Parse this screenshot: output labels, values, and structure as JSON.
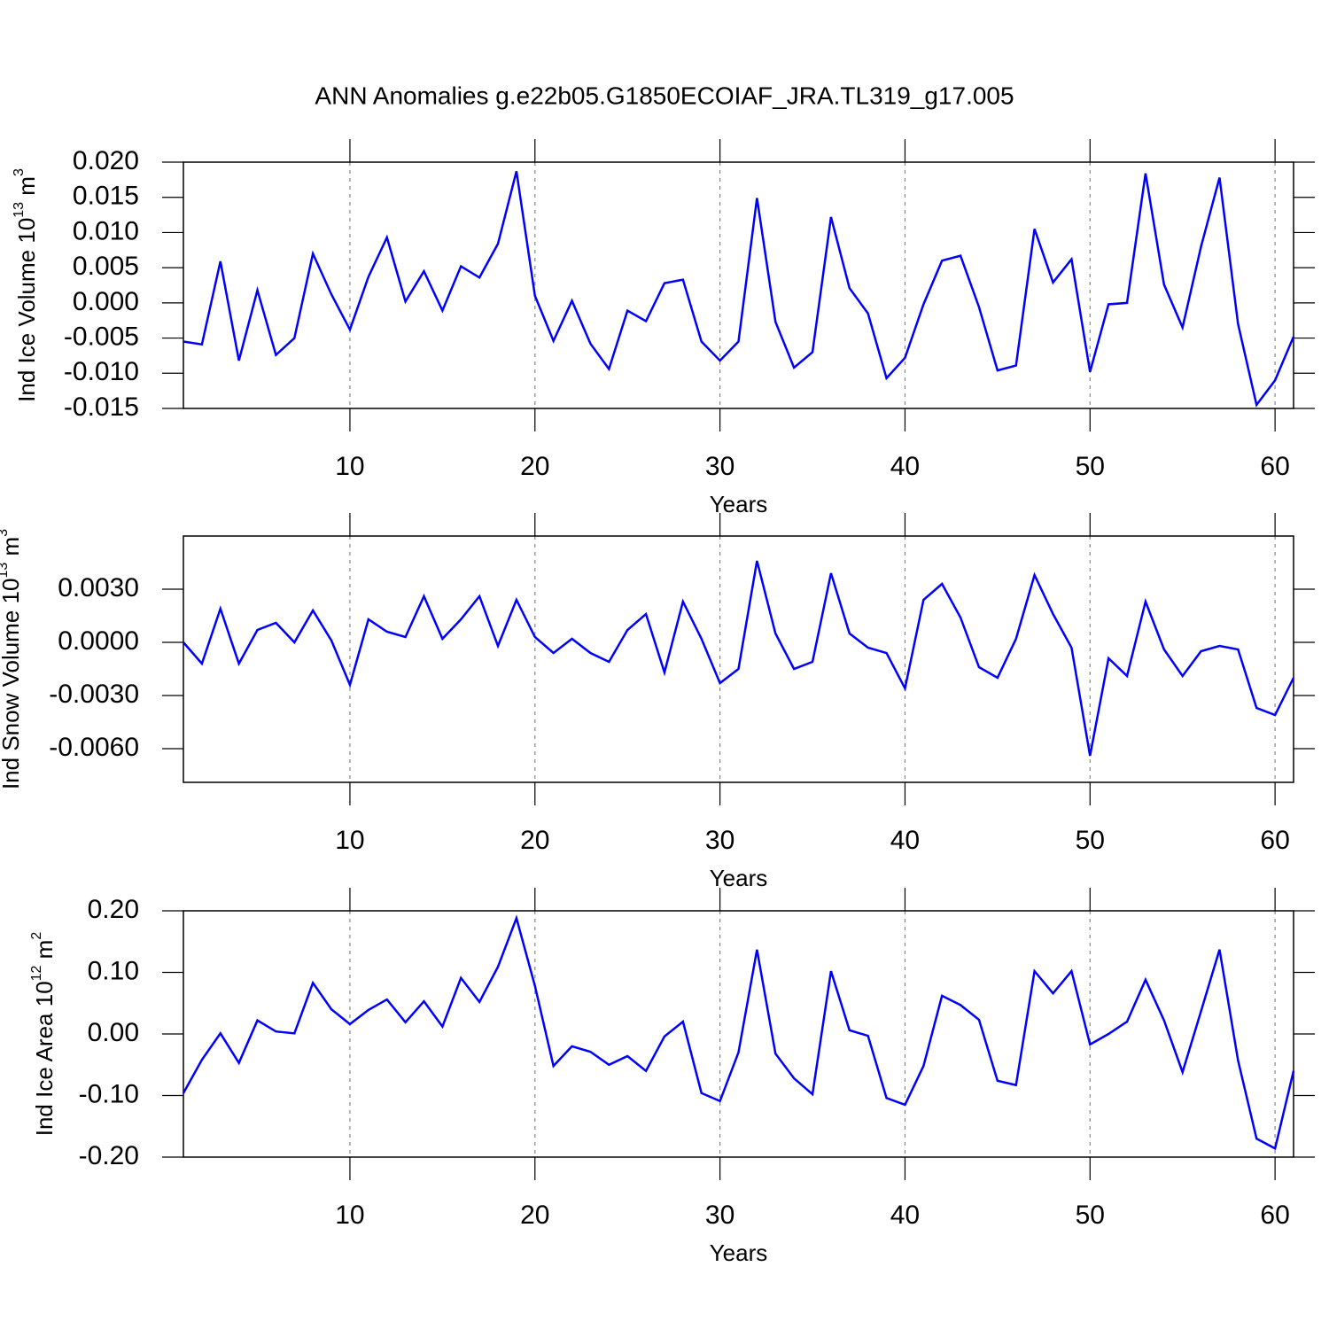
{
  "title": "ANN Anomalies g.e22b05.G1850ECOIAF_JRA.TL319_g17.005",
  "chart_data": [
    {
      "type": "line",
      "ylabel": [
        "Ind Ice Volume 10",
        "13",
        " m",
        "3"
      ],
      "xlabel": "Years",
      "color": "#0000ff",
      "grid": true,
      "x": [
        1,
        2,
        3,
        4,
        5,
        6,
        7,
        8,
        9,
        10,
        11,
        12,
        13,
        14,
        15,
        16,
        17,
        18,
        19,
        20,
        21,
        22,
        23,
        24,
        25,
        26,
        27,
        28,
        29,
        30,
        31,
        32,
        33,
        34,
        35,
        36,
        37,
        38,
        39,
        40,
        41,
        42,
        43,
        44,
        45,
        46,
        47,
        48,
        49,
        50,
        51,
        52,
        53,
        54,
        55,
        56,
        57,
        58,
        59,
        60,
        61
      ],
      "values": [
        -0.0055,
        -0.0059,
        0.0059,
        -0.0082,
        0.0018,
        -0.0074,
        -0.005,
        0.007,
        0.0012,
        -0.0038,
        0.0037,
        0.0093,
        0.0002,
        0.0045,
        -0.0011,
        0.0052,
        0.0036,
        0.0084,
        0.0187,
        0.001,
        -0.0054,
        0.0003,
        -0.0058,
        -0.0094,
        -0.0011,
        -0.0026,
        0.0028,
        0.0033,
        -0.0055,
        -0.0082,
        -0.0055,
        0.0149,
        -0.0027,
        -0.0092,
        -0.007,
        0.0122,
        0.0021,
        -0.0015,
        -0.0107,
        -0.0078,
        -0.0002,
        0.006,
        0.0067,
        -0.0006,
        -0.0096,
        -0.0089,
        0.0105,
        0.0029,
        0.0062,
        -0.0098,
        -0.0002,
        0.0,
        0.0184,
        0.0026,
        -0.0035,
        0.008,
        0.0178,
        -0.003,
        -0.0145,
        -0.011,
        -0.0048
      ],
      "xlim": [
        1,
        61
      ],
      "xticks": [
        10,
        20,
        30,
        40,
        50,
        60
      ],
      "ylim": [
        -0.015,
        0.02
      ],
      "yticks": [
        {
          "value": -0.015,
          "label": "-0.015"
        },
        {
          "value": -0.01,
          "label": "-0.010"
        },
        {
          "value": -0.005,
          "label": "-0.005"
        },
        {
          "value": 0,
          "label": "0.000"
        },
        {
          "value": 0.005,
          "label": "0.005"
        },
        {
          "value": 0.01,
          "label": "0.010"
        },
        {
          "value": 0.015,
          "label": "0.015"
        },
        {
          "value": 0.02,
          "label": "0.020"
        }
      ]
    },
    {
      "type": "line",
      "ylabel": [
        "Ind Snow Volume 10",
        "13",
        " m",
        "3"
      ],
      "xlabel": "Years",
      "color": "#0000ff",
      "grid": true,
      "x": [
        1,
        2,
        3,
        4,
        5,
        6,
        7,
        8,
        9,
        10,
        11,
        12,
        13,
        14,
        15,
        16,
        17,
        18,
        19,
        20,
        21,
        22,
        23,
        24,
        25,
        26,
        27,
        28,
        29,
        30,
        31,
        32,
        33,
        34,
        35,
        36,
        37,
        38,
        39,
        40,
        41,
        42,
        43,
        44,
        45,
        46,
        47,
        48,
        49,
        50,
        51,
        52,
        53,
        54,
        55,
        56,
        57,
        58,
        59,
        60,
        61
      ],
      "values": [
        0.0,
        -0.0012,
        0.0019,
        -0.0012,
        0.0007,
        0.0011,
        0.0,
        0.0018,
        0.0001,
        -0.0024,
        0.0013,
        0.0006,
        0.0003,
        0.0026,
        0.0002,
        0.0013,
        0.0026,
        -0.0002,
        0.0024,
        0.0003,
        -0.0006,
        0.0002,
        -0.0006,
        -0.0011,
        0.0007,
        0.0016,
        -0.0017,
        0.0023,
        0.0002,
        -0.0023,
        -0.0015,
        0.0046,
        0.0005,
        -0.0015,
        -0.0011,
        0.0039,
        0.0005,
        -0.0003,
        -0.0006,
        -0.0026,
        0.0024,
        0.0033,
        0.0014,
        -0.0014,
        -0.002,
        0.0002,
        0.0038,
        0.0016,
        -0.0003,
        -0.0064,
        -0.0009,
        -0.0019,
        0.0023,
        -0.0004,
        -0.0019,
        -0.0005,
        -0.0002,
        -0.0004,
        -0.0037,
        -0.0041,
        -0.002
      ],
      "xlim": [
        1,
        61
      ],
      "xticks": [
        10,
        20,
        30,
        40,
        50,
        60
      ],
      "ylim": [
        -0.0079,
        0.006
      ],
      "yticks": [
        {
          "value": -0.006,
          "label": "-0.0060"
        },
        {
          "value": -0.003,
          "label": "-0.0030"
        },
        {
          "value": 0,
          "label": "0.0000"
        },
        {
          "value": 0.003,
          "label": "0.0030"
        }
      ]
    },
    {
      "type": "line",
      "ylabel": [
        "Ind Ice Area 10",
        "12",
        " m",
        "2"
      ],
      "xlabel": "Years",
      "color": "#0000ff",
      "grid": true,
      "x": [
        1,
        2,
        3,
        4,
        5,
        6,
        7,
        8,
        9,
        10,
        11,
        12,
        13,
        14,
        15,
        16,
        17,
        18,
        19,
        20,
        21,
        22,
        23,
        24,
        25,
        26,
        27,
        28,
        29,
        30,
        31,
        32,
        33,
        34,
        35,
        36,
        37,
        38,
        39,
        40,
        41,
        42,
        43,
        44,
        45,
        46,
        47,
        48,
        49,
        50,
        51,
        52,
        53,
        54,
        55,
        56,
        57,
        58,
        59,
        60,
        61
      ],
      "values": [
        -0.096,
        -0.042,
        0.001,
        -0.047,
        0.022,
        0.004,
        0.001,
        0.083,
        0.04,
        0.016,
        0.039,
        0.056,
        0.019,
        0.053,
        0.012,
        0.091,
        0.052,
        0.109,
        0.188,
        0.078,
        -0.052,
        -0.02,
        -0.029,
        -0.05,
        -0.036,
        -0.06,
        -0.004,
        0.02,
        -0.096,
        -0.109,
        -0.03,
        0.137,
        -0.032,
        -0.072,
        -0.098,
        0.102,
        0.006,
        -0.003,
        -0.104,
        -0.115,
        -0.052,
        0.062,
        0.047,
        0.023,
        -0.076,
        -0.083,
        0.102,
        0.066,
        0.102,
        -0.017,
        0.0,
        0.02,
        0.088,
        0.022,
        -0.062,
        0.037,
        0.137,
        -0.043,
        -0.17,
        -0.186,
        -0.06
      ],
      "xlim": [
        1,
        61
      ],
      "xticks": [
        10,
        20,
        30,
        40,
        50,
        60
      ],
      "ylim": [
        -0.2,
        0.2
      ],
      "yticks": [
        {
          "value": -0.2,
          "label": "-0.20"
        },
        {
          "value": -0.1,
          "label": "-0.10"
        },
        {
          "value": 0,
          "label": "0.00"
        },
        {
          "value": 0.1,
          "label": "0.10"
        },
        {
          "value": 0.2,
          "label": "0.20"
        }
      ]
    }
  ]
}
